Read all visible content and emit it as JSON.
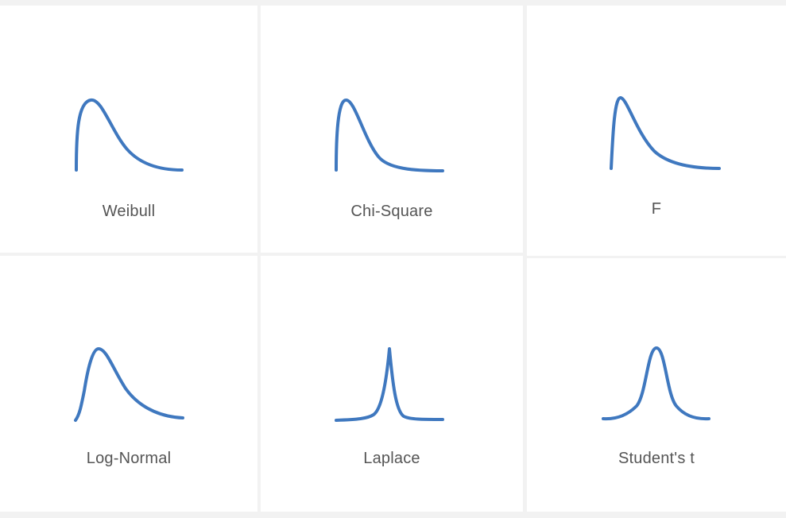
{
  "accent_color": "#3f78bf",
  "distributions": [
    {
      "name": "Weibull",
      "icon": "weibull-curve-icon"
    },
    {
      "name": "Chi-Square",
      "icon": "chi-square-curve-icon"
    },
    {
      "name": "F",
      "icon": "f-distribution-curve-icon"
    },
    {
      "name": "Log-Normal",
      "icon": "log-normal-curve-icon"
    },
    {
      "name": "Laplace",
      "icon": "laplace-curve-icon"
    },
    {
      "name": "Student's t",
      "icon": "students-t-curve-icon"
    }
  ]
}
